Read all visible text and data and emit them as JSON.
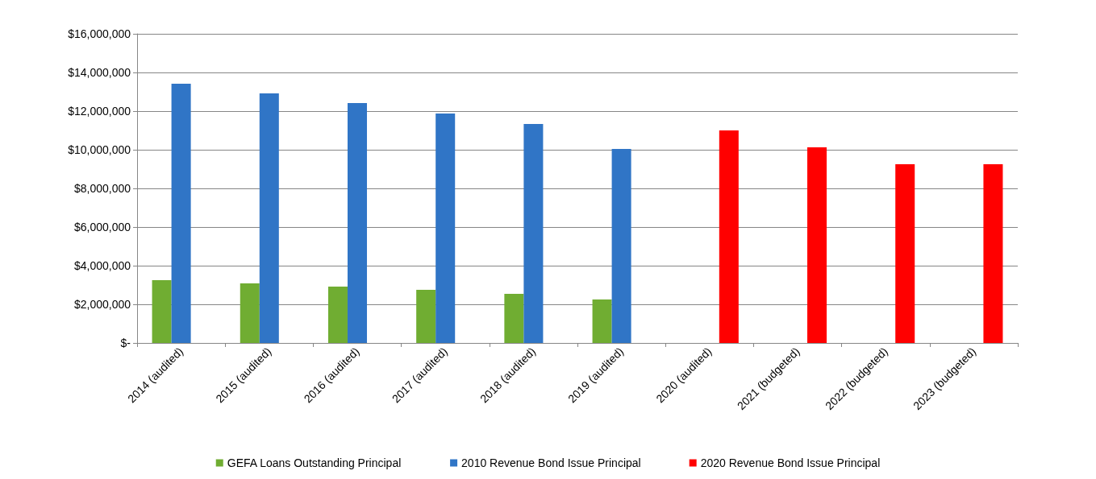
{
  "chart_data": {
    "type": "bar",
    "categories": [
      "2014 (audited)",
      "2015 (audited)",
      "2016 (audited)",
      "2017 (audited)",
      "2018 (audited)",
      "2019 (audited)",
      "2020 (audited)",
      "2021 (budgeted)",
      "2022 (budgeted)",
      "2023 (budgeted)"
    ],
    "series": [
      {
        "name": "GEFA Loans Outstanding Principal",
        "color": "#70ad32",
        "values": [
          3250000,
          3080000,
          2920000,
          2750000,
          2540000,
          2250000,
          null,
          null,
          null,
          null
        ]
      },
      {
        "name": "2010 Revenue Bond Issue Principal",
        "color": "#3075c6",
        "values": [
          13420000,
          12920000,
          12420000,
          11880000,
          11330000,
          10040000,
          null,
          null,
          null,
          null
        ]
      },
      {
        "name": "2020 Revenue Bond Issue Principal",
        "color": "#ff0000",
        "values": [
          null,
          null,
          null,
          null,
          null,
          null,
          11000000,
          10130000,
          9250000,
          9250000
        ]
      }
    ],
    "ylim": [
      0,
      16000000
    ],
    "yticks": [
      {
        "value": 0,
        "label": "$-"
      },
      {
        "value": 2000000,
        "label": "$2,000,000"
      },
      {
        "value": 4000000,
        "label": "$4,000,000"
      },
      {
        "value": 6000000,
        "label": "$6,000,000"
      },
      {
        "value": 8000000,
        "label": "$8,000,000"
      },
      {
        "value": 10000000,
        "label": "$10,000,000"
      },
      {
        "value": 12000000,
        "label": "$12,000,000"
      },
      {
        "value": 14000000,
        "label": "$14,000,000"
      },
      {
        "value": 16000000,
        "label": "$16,000,000"
      }
    ],
    "grid": "y",
    "legend": "bottom"
  }
}
